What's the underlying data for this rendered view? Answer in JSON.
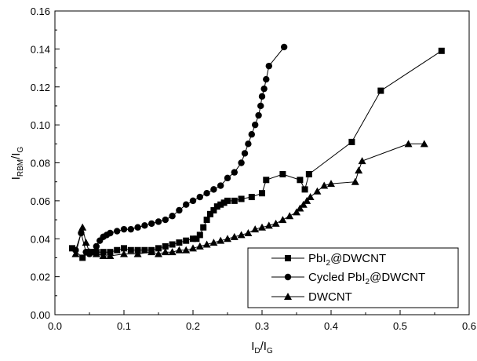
{
  "chart_data": {
    "type": "scatter",
    "xlabel": {
      "main": "I",
      "sub1": "D",
      "sep": "/I",
      "sub2": "G"
    },
    "ylabel": {
      "main": "I",
      "sub1": "RBM",
      "sep": "/I",
      "sub2": "G"
    },
    "xlim": [
      0.0,
      0.6
    ],
    "ylim": [
      0.0,
      0.16
    ],
    "xticks": [
      "0.0",
      "0.1",
      "0.2",
      "0.3",
      "0.4",
      "0.5",
      "0.6"
    ],
    "yticks": [
      "0.00",
      "0.02",
      "0.04",
      "0.06",
      "0.08",
      "0.10",
      "0.12",
      "0.14",
      "0.16"
    ],
    "grid": false,
    "legend_position": "bottom-right",
    "series": [
      {
        "name": {
          "pre": "PbI",
          "sub": "2",
          "post": "@DWCNT"
        },
        "marker": "square",
        "line_color": "#000000",
        "x": [
          0.025,
          0.04,
          0.05,
          0.06,
          0.07,
          0.08,
          0.09,
          0.1,
          0.11,
          0.12,
          0.13,
          0.14,
          0.15,
          0.16,
          0.17,
          0.18,
          0.19,
          0.2,
          0.205,
          0.21,
          0.215,
          0.22,
          0.225,
          0.23,
          0.235,
          0.24,
          0.245,
          0.25,
          0.26,
          0.27,
          0.285,
          0.3,
          0.306,
          0.33,
          0.355,
          0.362,
          0.368,
          0.43,
          0.472,
          0.56
        ],
        "y": [
          0.035,
          0.03,
          0.033,
          0.033,
          0.033,
          0.033,
          0.034,
          0.035,
          0.034,
          0.034,
          0.034,
          0.034,
          0.035,
          0.036,
          0.037,
          0.038,
          0.039,
          0.04,
          0.04,
          0.042,
          0.046,
          0.05,
          0.053,
          0.055,
          0.057,
          0.058,
          0.059,
          0.06,
          0.06,
          0.061,
          0.062,
          0.064,
          0.071,
          0.074,
          0.071,
          0.066,
          0.074,
          0.091,
          0.118,
          0.139
        ]
      },
      {
        "name": {
          "pre": "Cycled PbI",
          "sub": "2",
          "post": "@DWCNT"
        },
        "marker": "circle",
        "line_color": "#000000",
        "x": [
          0.03,
          0.038,
          0.045,
          0.05,
          0.055,
          0.06,
          0.065,
          0.07,
          0.075,
          0.08,
          0.09,
          0.1,
          0.11,
          0.12,
          0.13,
          0.14,
          0.15,
          0.16,
          0.17,
          0.18,
          0.19,
          0.2,
          0.21,
          0.22,
          0.23,
          0.24,
          0.25,
          0.26,
          0.27,
          0.275,
          0.28,
          0.285,
          0.29,
          0.295,
          0.298,
          0.3,
          0.303,
          0.306,
          0.31,
          0.332
        ],
        "y": [
          0.034,
          0.043,
          0.033,
          0.032,
          0.033,
          0.036,
          0.039,
          0.041,
          0.042,
          0.043,
          0.044,
          0.045,
          0.045,
          0.046,
          0.047,
          0.048,
          0.049,
          0.05,
          0.052,
          0.055,
          0.058,
          0.06,
          0.062,
          0.064,
          0.066,
          0.068,
          0.072,
          0.075,
          0.08,
          0.085,
          0.09,
          0.095,
          0.1,
          0.105,
          0.11,
          0.115,
          0.119,
          0.124,
          0.131,
          0.141
        ]
      },
      {
        "name": {
          "pre": "DWCNT",
          "sub": "",
          "post": ""
        },
        "marker": "triangle",
        "line_color": "#000000",
        "x": [
          0.03,
          0.04,
          0.045,
          0.05,
          0.06,
          0.07,
          0.08,
          0.1,
          0.12,
          0.14,
          0.15,
          0.16,
          0.17,
          0.18,
          0.19,
          0.2,
          0.21,
          0.22,
          0.23,
          0.24,
          0.25,
          0.26,
          0.27,
          0.28,
          0.29,
          0.3,
          0.31,
          0.32,
          0.33,
          0.34,
          0.35,
          0.355,
          0.36,
          0.365,
          0.37,
          0.38,
          0.39,
          0.4,
          0.435,
          0.44,
          0.445,
          0.512,
          0.535
        ],
        "y": [
          0.032,
          0.046,
          0.038,
          0.033,
          0.032,
          0.031,
          0.031,
          0.032,
          0.032,
          0.033,
          0.032,
          0.033,
          0.033,
          0.034,
          0.034,
          0.035,
          0.036,
          0.037,
          0.038,
          0.039,
          0.04,
          0.041,
          0.042,
          0.043,
          0.045,
          0.046,
          0.047,
          0.048,
          0.05,
          0.052,
          0.054,
          0.056,
          0.058,
          0.06,
          0.062,
          0.065,
          0.068,
          0.069,
          0.07,
          0.076,
          0.081,
          0.09,
          0.09
        ]
      }
    ]
  }
}
